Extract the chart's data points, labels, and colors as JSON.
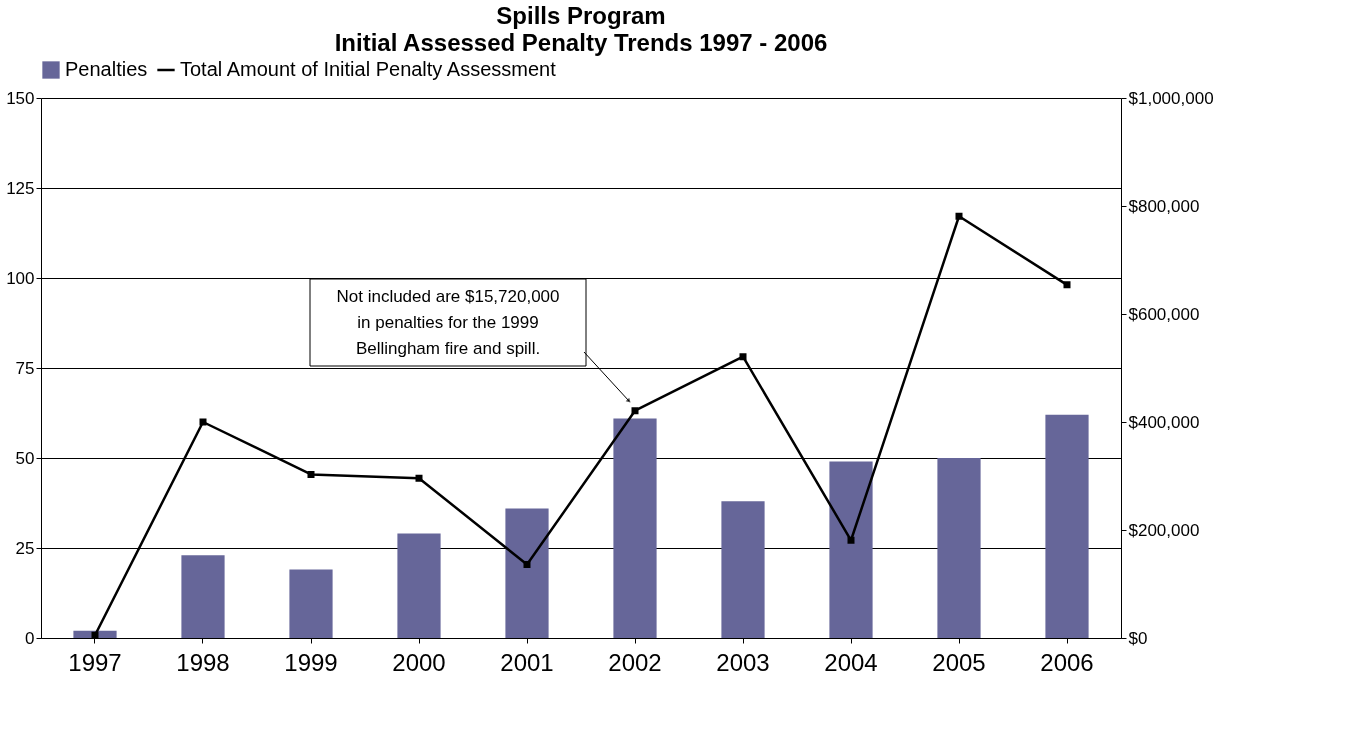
{
  "chart_data": {
    "type": "bar",
    "title": "Spills Program",
    "subtitle": "Initial Assessed Penalty Trends 1997 - 2006",
    "categories": [
      "1997",
      "1998",
      "1999",
      "2000",
      "2001",
      "2002",
      "2003",
      "2004",
      "2005",
      "2006"
    ],
    "series": [
      {
        "name": "Penalties",
        "type": "bar",
        "color": "#666699",
        "values": [
          2,
          23,
          19,
          29,
          36,
          61,
          38,
          49,
          50,
          62
        ]
      },
      {
        "name": "Total Amount of Initial Penalty Assessment",
        "type": "line",
        "axis": "y2",
        "color": "#000000",
        "marker": "square",
        "values": [
          5000,
          400000,
          303000,
          296000,
          136000,
          421000,
          521000,
          181000,
          781000,
          654000
        ]
      }
    ],
    "ylim": [
      0,
      150
    ],
    "yticks": [
      0,
      25,
      50,
      75,
      100,
      125,
      150
    ],
    "y2lim": [
      0,
      1000000
    ],
    "y2ticks": [
      {
        "value": 0,
        "label": "$0"
      },
      {
        "value": 200000,
        "label": "$200,000"
      },
      {
        "value": 400000,
        "label": "$400,000"
      },
      {
        "value": 600000,
        "label": "$600,000"
      },
      {
        "value": 800000,
        "label": "$800,000"
      },
      {
        "value": 1000000,
        "label": "$1,000,000"
      }
    ],
    "grid": "y",
    "legend": "top",
    "annotations": [
      "Not included are $15,720,000 in penalties for the 1999 Bellingham fire and spill."
    ]
  }
}
